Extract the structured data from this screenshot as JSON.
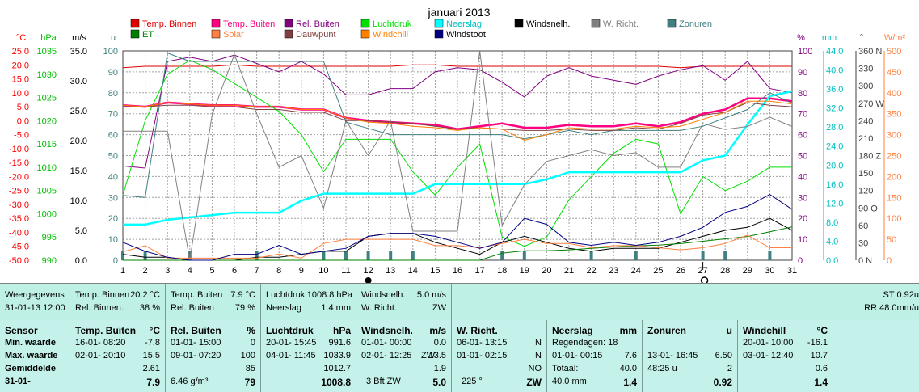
{
  "chart_data": {
    "type": "line",
    "title": "januari 2013",
    "x": [
      1,
      2,
      3,
      4,
      5,
      6,
      7,
      8,
      9,
      10,
      11,
      12,
      13,
      14,
      15,
      16,
      17,
      18,
      19,
      20,
      21,
      22,
      23,
      24,
      25,
      26,
      27,
      28,
      29,
      30,
      31
    ],
    "legend": [
      {
        "name": "Temp. Binnen",
        "color": "#e00000"
      },
      {
        "name": "Temp. Buiten",
        "color": "#ff0080"
      },
      {
        "name": "Rel. Buiten",
        "color": "#800080"
      },
      {
        "name": "Luchtdruk",
        "color": "#00e000"
      },
      {
        "name": "Neerslag",
        "color": "#00ffff"
      },
      {
        "name": "Windsnelh.",
        "color": "#000000"
      },
      {
        "name": "W. Richt.",
        "color": "#808080"
      },
      {
        "name": "Zonuren",
        "color": "#408080"
      },
      {
        "name": "ET",
        "color": "#008000"
      },
      {
        "name": "Solar",
        "color": "#ff8040"
      },
      {
        "name": "Dauwpunt",
        "color": "#804040"
      },
      {
        "name": "Windchill",
        "color": "#ff8000"
      },
      {
        "name": "Windstoot",
        "color": "#000080"
      }
    ],
    "left_axes": [
      {
        "unit": "°C",
        "color": "#ff0000",
        "ticks": [
          "25.0",
          "20.0",
          "15.0",
          "10.0",
          "5.0",
          "0.0",
          "-5.0",
          "-10.0",
          "-15.0",
          "-20.0",
          "-25.0",
          "-30.0",
          "-35.0",
          "-40.0",
          "-45.0",
          "-50.0"
        ]
      },
      {
        "unit": "hPa",
        "color": "#00c000",
        "ticks": [
          "1035",
          "1030",
          "1025",
          "1020",
          "1015",
          "1010",
          "1005",
          "1000",
          "995",
          "990"
        ]
      },
      {
        "unit": "m/s",
        "color": "#000000",
        "ticks": [
          "35.0",
          "30.0",
          "25.0",
          "20.0",
          "15.0",
          "10.0",
          "5.0",
          "0.0"
        ]
      },
      {
        "unit": "u",
        "color": "#408080",
        "ticks": [
          "100",
          "90",
          "80",
          "70",
          "60",
          "50",
          "40",
          "30",
          "20",
          "10",
          "0"
        ]
      }
    ],
    "right_axes": [
      {
        "unit": "%",
        "color": "#800080",
        "ticks": [
          "100",
          "90",
          "80",
          "70",
          "60",
          "50",
          "40",
          "30",
          "20",
          "10",
          "0"
        ]
      },
      {
        "unit": "mm",
        "color": "#00c0c0",
        "ticks": [
          "44.0",
          "40.0",
          "36.0",
          "32.0",
          "28.0",
          "24.0",
          "20.0",
          "16.0",
          "12.0",
          "8.0",
          "4.0",
          "0.0"
        ]
      },
      {
        "unit": "°",
        "color": "#404040",
        "ticks": [
          "360 N",
          "330",
          "300",
          "270 W",
          "240",
          "210",
          "180 Z",
          "150",
          "120",
          "90 O",
          "60",
          "30",
          "0 N"
        ]
      },
      {
        "unit": "W/m²",
        "color": "#ff8040",
        "ticks": [
          "500",
          "450",
          "400",
          "350",
          "300",
          "250",
          "200",
          "150",
          "100",
          "50",
          "0"
        ]
      }
    ],
    "series": [
      {
        "name": "Temp. Binnen",
        "unit": "°C",
        "color": "#e00000",
        "values": [
          19,
          19.5,
          19.5,
          19.5,
          19.5,
          20,
          19.5,
          19.5,
          19.5,
          19.5,
          19.5,
          19.5,
          19.5,
          20,
          20,
          19.5,
          19.5,
          19.5,
          19.5,
          19.5,
          19.5,
          19.5,
          19.5,
          19.5,
          19.5,
          19,
          19.5,
          19.5,
          19.5,
          19.5,
          19.5
        ]
      },
      {
        "name": "Temp. Buiten",
        "unit": "°C",
        "color": "#ff0080",
        "values": [
          5.5,
          5,
          6.5,
          6,
          5.5,
          5.5,
          5,
          5,
          4,
          4,
          1,
          0,
          -0.5,
          -1,
          -1.5,
          -3,
          -2,
          -1,
          -2.5,
          -2.5,
          -1.5,
          -2,
          -2,
          -1,
          -2,
          -0.5,
          2.5,
          4,
          8,
          8,
          7
        ]
      },
      {
        "name": "Rel. Buiten",
        "unit": "%",
        "color": "#800080",
        "values": [
          45,
          44,
          95,
          97,
          95,
          98,
          94,
          90,
          95,
          89,
          79,
          79,
          82,
          82,
          90,
          92,
          91,
          85,
          78,
          88,
          92,
          88,
          86,
          84,
          88,
          91,
          93,
          86,
          95,
          82,
          80
        ]
      },
      {
        "name": "Luchtdruk",
        "unit": "hPa",
        "color": "#00e000",
        "values": [
          1004,
          1020,
          1030,
          1033,
          1031,
          1028,
          1025,
          1022,
          1017,
          1009,
          1016,
          1016,
          1016,
          1009,
          1004,
          1010,
          1015,
          995,
          993,
          995,
          1003,
          1008,
          1013,
          1016,
          1015,
          1000,
          1008,
          1005,
          1007,
          1010,
          1010
        ]
      },
      {
        "name": "Neerslag",
        "unit": "mm",
        "color": "#00ffff",
        "values": [
          7.5,
          7.5,
          8.5,
          9,
          9.5,
          10,
          10,
          10,
          12.5,
          14,
          14,
          14,
          14,
          14,
          16,
          16,
          16,
          16,
          16,
          17,
          18.5,
          18.5,
          18.5,
          18.5,
          18.5,
          18.5,
          21,
          22,
          28.5,
          34.5,
          35.5
        ]
      },
      {
        "name": "Windsnelh.",
        "unit": "m/s",
        "color": "#000000",
        "values": [
          1,
          0.5,
          0.5,
          0,
          0,
          0,
          0.5,
          0.5,
          1,
          1.5,
          1.5,
          4,
          4.5,
          4.5,
          3,
          2,
          1,
          3,
          4,
          3,
          2,
          1.5,
          2,
          2,
          2,
          3,
          4,
          5,
          5.5,
          7,
          5
        ]
      },
      {
        "name": "W. Richt.",
        "unit": "°",
        "color": "#808080",
        "values": [
          222,
          222,
          222,
          0,
          250,
          354,
          252,
          160,
          180,
          90,
          240,
          180,
          240,
          50,
          50,
          50,
          360,
          60,
          130,
          170,
          180,
          190,
          180,
          185,
          160,
          160,
          235,
          225,
          230,
          246,
          230
        ]
      },
      {
        "name": "Zonuren",
        "unit": "u",
        "color": "#408080",
        "values": [
          31,
          30,
          99,
          95,
          95,
          95,
          95,
          95,
          95,
          95,
          66,
          63,
          60,
          60,
          60,
          60,
          60,
          60,
          58,
          60,
          62,
          60,
          62,
          62,
          62,
          62,
          64,
          68,
          72,
          80,
          75
        ]
      },
      {
        "name": "ET",
        "unit": "mm",
        "color": "#008000",
        "values": [
          0,
          0,
          0,
          0,
          0,
          0,
          0,
          0,
          0,
          0,
          0,
          0,
          0,
          0,
          0,
          0,
          0,
          1.5,
          2,
          2,
          2.2,
          2.5,
          2.8,
          3,
          3.2,
          3.5,
          4,
          4.5,
          5,
          6,
          7
        ]
      },
      {
        "name": "Solar",
        "unit": "W/m²",
        "color": "#ff8040",
        "values": [
          20,
          35,
          5,
          5,
          5,
          5,
          5,
          15,
          5,
          40,
          50,
          50,
          50,
          50,
          35,
          35,
          30,
          40,
          50,
          40,
          40,
          30,
          35,
          35,
          30,
          25,
          30,
          40,
          60,
          30,
          30
        ]
      },
      {
        "name": "Dauwpunt",
        "unit": "°C",
        "color": "#804040",
        "values": [
          5,
          5,
          5.5,
          5.5,
          5,
          5,
          4,
          4,
          3,
          3,
          0,
          0,
          -0.5,
          -1,
          -2,
          -3,
          -2.5,
          -3,
          -3.5,
          -3.5,
          -3,
          -3.5,
          -3.5,
          -2.5,
          -3,
          -1,
          2,
          3,
          6.5,
          5.5,
          5
        ]
      },
      {
        "name": "Windchill",
        "unit": "°C",
        "color": "#ff8000",
        "values": [
          5.5,
          5,
          6.5,
          6,
          5.5,
          5.5,
          5,
          5,
          4,
          4,
          1,
          -0.5,
          -1,
          -2,
          -2.5,
          -3.5,
          -2.5,
          -3,
          -7,
          -5,
          -2.5,
          -3,
          -3,
          -2,
          -2.5,
          -2,
          0.5,
          3,
          7,
          7,
          6
        ]
      },
      {
        "name": "Windstoot",
        "unit": "m/s",
        "color": "#000080",
        "values": [
          3,
          1.5,
          0.5,
          0,
          0,
          1,
          1,
          2.5,
          1,
          1.5,
          2,
          4,
          4.5,
          4.5,
          4,
          3,
          2,
          3,
          7,
          6,
          3,
          2.5,
          3,
          2.5,
          3,
          4,
          5.5,
          8,
          9,
          11,
          8.5
        ]
      }
    ],
    "rain_bars": [
      1,
      2,
      4,
      7,
      10,
      11,
      12,
      13,
      14,
      18,
      19,
      22,
      24,
      27,
      28,
      30
    ],
    "annotations": {
      "new_moon_day": 12,
      "full_moon_day": 27
    }
  },
  "summary": {
    "label1": "Weergegevens",
    "label2": "31-01-13 12:00",
    "tb_label": "Temp. Binnen",
    "tb_value": "20.2 °C",
    "rb_label": "Rel. Binnen.",
    "rb_value": "38 %",
    "tbu_label": "Temp. Buiten",
    "tbu_value": "7.9 °C",
    "rbu_label": "Rel. Buiten",
    "rbu_value": "79 %",
    "ld_label": "Luchtdruk",
    "ld_value": "1008.8 hPa",
    "ns_label": "Neerslag",
    "ns_value": "1.4 mm",
    "ws_label": "Windsnelh.",
    "ws_value": "5.0 m/s",
    "wr_label": "W. Richt.",
    "wr_value": "ZW",
    "st": "ST 0.92u",
    "rr": "RR 48.0mm/u"
  },
  "sensors": {
    "rows": [
      "Sensor",
      "Min. waarde",
      "Max. waarde",
      "Gemiddelde",
      "31-01-"
    ],
    "tbuiten": {
      "title": "Temp. Buiten",
      "unit": "°C",
      "min_dt": "16-01- 08:20",
      "min": "-7.8",
      "max_dt": "02-01- 20:10",
      "max": "15.5",
      "avg": "2.61",
      "cur": "7.9"
    },
    "rbuiten": {
      "title": "Rel. Buiten",
      "unit": "%",
      "min_dt": "01-01- 15:00",
      "min": "0",
      "max_dt": "09-01- 07:20",
      "max": "100",
      "avg": "85",
      "cur_extra": "6.46 g/m³",
      "cur": "79"
    },
    "luchtdruk": {
      "title": "Luchtdruk",
      "unit": "hPa",
      "min_dt": "20-01- 15:45",
      "min": "991.6",
      "max_dt": "04-01- 11:45",
      "max": "1033.9",
      "avg": "1012.7",
      "cur": "1008.8"
    },
    "wind": {
      "title": "Windsnelh.",
      "unit": "m/s",
      "min_dt": "01-01- 00:00",
      "min": "0.0",
      "max_dt": "02-01- 12:25",
      "max_dir": "ZW",
      "max": "13.5",
      "avg": "1.9",
      "cur_extra": "3 Bft ZW",
      "cur": "5.0"
    },
    "wrichting": {
      "title": "W. Richt.",
      "min_dt": "06-01- 13:15",
      "min": "N",
      "max_dt": "01-01- 02:15",
      "max": "N",
      "avg": "NO",
      "cur_extra": "225 °",
      "cur": "ZW"
    },
    "neerslag": {
      "title": "Neerslag",
      "unit": "mm",
      "regendagen": "Regendagen: 18",
      "max_dt": "01-01- 00:15",
      "max": "7.6",
      "totaal_label": "Totaal:",
      "totaal": "40.0",
      "cur_extra": "40.0 mm",
      "cur": "1.4"
    },
    "zonuren": {
      "title": "Zonuren",
      "unit": "u",
      "max_dt": "13-01- 16:45",
      "max": "6.50",
      "avg_dt": "48:25 u",
      "avg": "2",
      "cur": "0.92"
    },
    "windchill": {
      "title": "Windchill",
      "unit": "°C",
      "min_dt": "20-01- 10:00",
      "min": "-16.1",
      "max_dt": "03-01- 12:40",
      "max": "10.7",
      "avg": "0.6",
      "cur": "1.4"
    }
  }
}
